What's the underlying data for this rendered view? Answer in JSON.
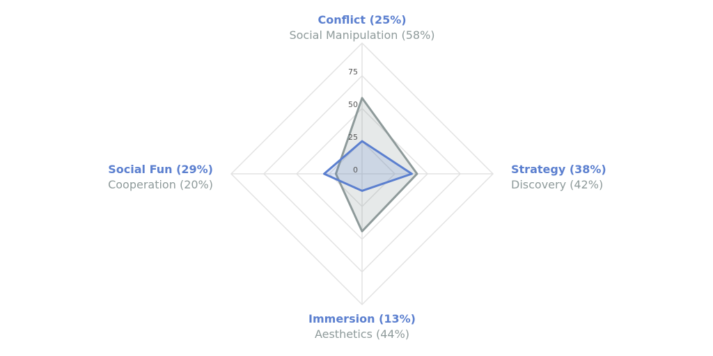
{
  "colors": {
    "primary": "#5b7fcf",
    "secondary": "#8e9a9a",
    "grid": "#e2e2e2",
    "tick": "#555555"
  },
  "chart_data": {
    "type": "radar",
    "axes": [
      "top",
      "right",
      "bottom",
      "left"
    ],
    "ticks": [
      "0",
      "25",
      "50",
      "75"
    ],
    "tick_values": [
      0,
      25,
      50,
      75
    ],
    "range": [
      0,
      100
    ],
    "grid": true,
    "labels": {
      "top": {
        "primary": "Conflict (25%)",
        "secondary": "Social Manipulation (58%)"
      },
      "right": {
        "primary": "Strategy (38%)",
        "secondary": "Discovery (42%)"
      },
      "bottom": {
        "primary": "Immersion (13%)",
        "secondary": "Aesthetics (44%)"
      },
      "left": {
        "primary": "Social Fun (29%)",
        "secondary": "Cooperation (20%)"
      }
    },
    "series": [
      {
        "values": [
          58,
          42,
          44,
          20
        ],
        "color": "#8e9a9a"
      },
      {
        "values": [
          25,
          38,
          13,
          29
        ],
        "color": "#5b7fcf"
      }
    ]
  }
}
